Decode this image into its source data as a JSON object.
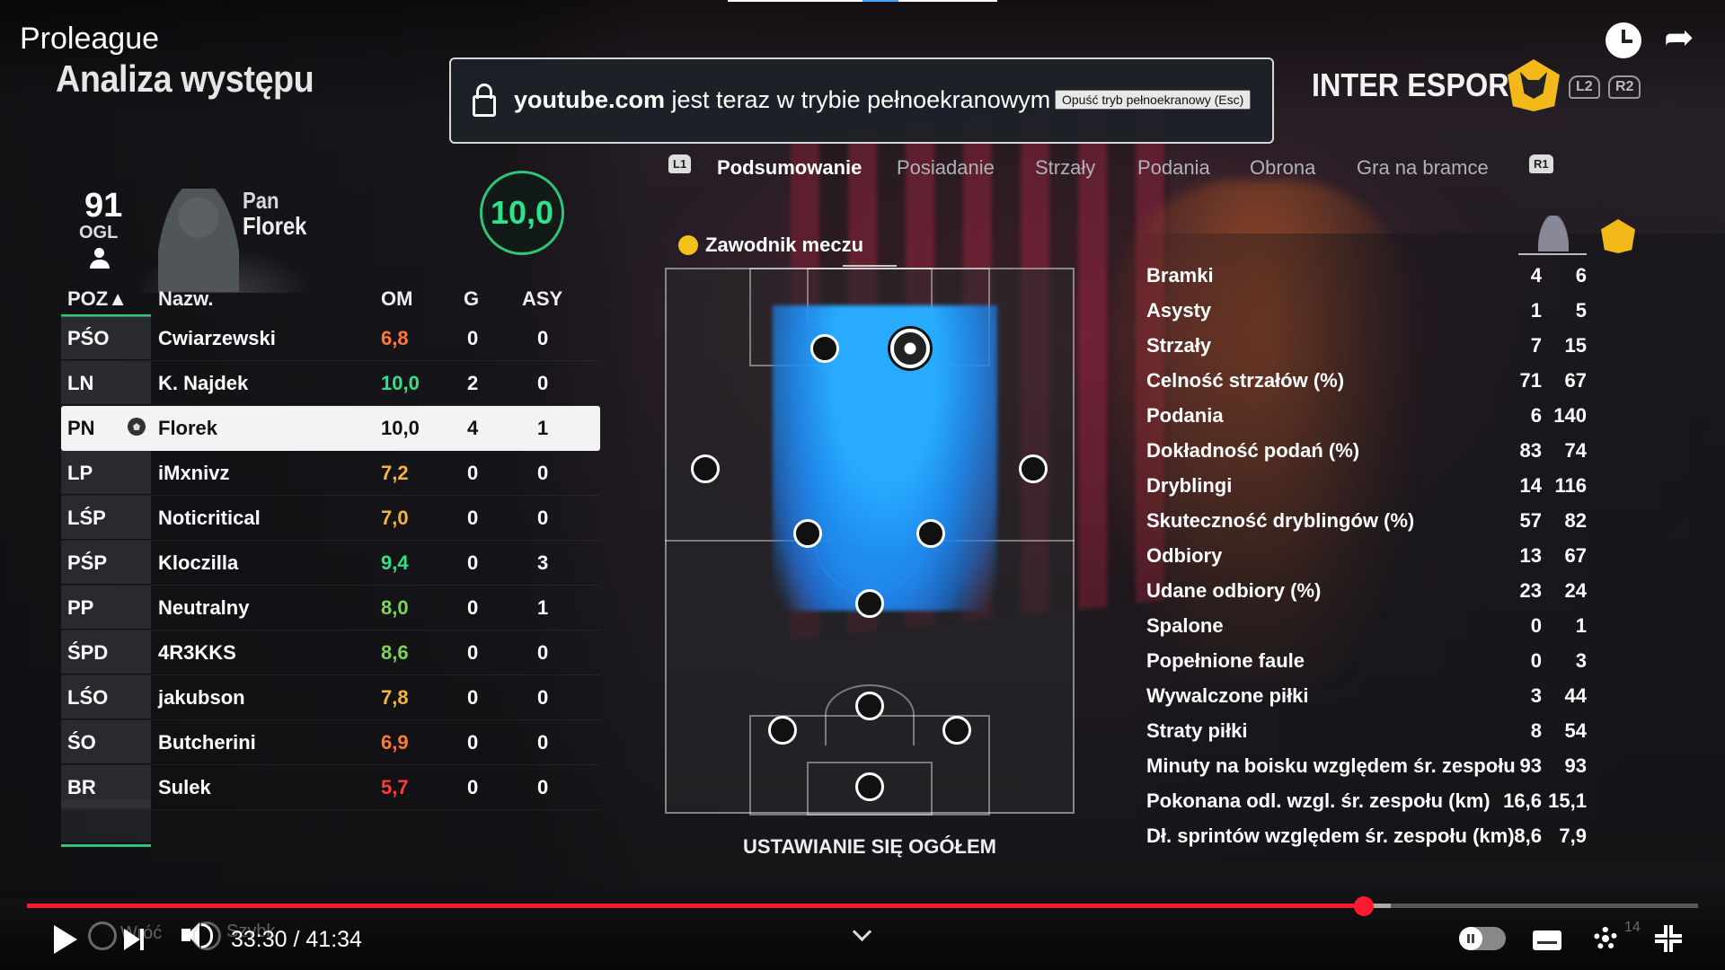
{
  "player": {
    "video_title": "Proleague",
    "time_current": "33:30",
    "time_total": "41:34",
    "time_display": "33:30 / 41:34",
    "progress_fraction": 0.8,
    "faded_labels": [
      "Wróć",
      "Szybk"
    ],
    "faded_badge": "14"
  },
  "fullscreen_banner": {
    "site": "youtube.com",
    "message": "jest teraz w trybie pełnoekranowym",
    "exit_button": "Opuść tryb pełnoekranowy (Esc)"
  },
  "game": {
    "screen_title": "Analiza występu",
    "brand": "INTER ESPORT",
    "l2": "L2",
    "r2": "R2",
    "l1": "L1",
    "r1": "R1",
    "tabs": [
      "Podsumowanie",
      "Posiadanie",
      "Strzały",
      "Podania",
      "Obrona",
      "Gra na bramce"
    ],
    "active_tab": "Podsumowanie",
    "player_card": {
      "ovr": "91",
      "ovr_label": "OGL",
      "first_name": "Pan",
      "last_name": "Florek",
      "rating": "10,0"
    },
    "table": {
      "headers": {
        "pos": "POZ▲",
        "name": "Nazw.",
        "om": "OM",
        "g": "G",
        "asy": "ASY"
      },
      "rows": [
        {
          "pos": "PŚO",
          "name": "Cwiarzewski",
          "om": "6,8",
          "g": "0",
          "asy": "0",
          "color": "#ff7a3a"
        },
        {
          "pos": "LN",
          "name": "K. Najdek",
          "om": "10,0",
          "g": "2",
          "asy": "0",
          "color": "#35e08a"
        },
        {
          "pos": "PN",
          "name": "Florek",
          "om": "10,0",
          "g": "4",
          "asy": "1",
          "color": "#111111",
          "selected": true
        },
        {
          "pos": "LP",
          "name": "iMxnivz",
          "om": "7,2",
          "g": "0",
          "asy": "0",
          "color": "#f2b540"
        },
        {
          "pos": "LŚP",
          "name": "Noticritical",
          "om": "7,0",
          "g": "0",
          "asy": "0",
          "color": "#f2b540"
        },
        {
          "pos": "PŚP",
          "name": "Kloczilla",
          "om": "9,4",
          "g": "0",
          "asy": "3",
          "color": "#35e08a"
        },
        {
          "pos": "PP",
          "name": "Neutralny",
          "om": "8,0",
          "g": "0",
          "asy": "1",
          "color": "#7fd35a"
        },
        {
          "pos": "ŚPD",
          "name": "4R3KKS",
          "om": "8,6",
          "g": "0",
          "asy": "0",
          "color": "#7fd35a"
        },
        {
          "pos": "LŚO",
          "name": "jakubson",
          "om": "7,8",
          "g": "0",
          "asy": "0",
          "color": "#f2b540"
        },
        {
          "pos": "ŚO",
          "name": "Butcherini",
          "om": "6,9",
          "g": "0",
          "asy": "0",
          "color": "#ff7a3a"
        },
        {
          "pos": "BR",
          "name": "Sulek",
          "om": "5,7",
          "g": "0",
          "asy": "0",
          "color": "#ff3b3b"
        }
      ]
    },
    "man_of_match": "Zawodnik meczu",
    "pitch_label": "USTAWIANIE SIĘ OGÓŁEM",
    "stats": [
      {
        "label": "Bramki",
        "player": "4",
        "team": "6"
      },
      {
        "label": "Asysty",
        "player": "1",
        "team": "5"
      },
      {
        "label": "Strzały",
        "player": "7",
        "team": "15"
      },
      {
        "label": "Celność strzałów (%)",
        "player": "71",
        "team": "67"
      },
      {
        "label": "Podania",
        "player": "6",
        "team": "140"
      },
      {
        "label": "Dokładność podań (%)",
        "player": "83",
        "team": "74"
      },
      {
        "label": "Dryblingi",
        "player": "14",
        "team": "116"
      },
      {
        "label": "Skuteczność dryblingów (%)",
        "player": "57",
        "team": "82"
      },
      {
        "label": "Odbiory",
        "player": "13",
        "team": "67"
      },
      {
        "label": "Udane odbiory (%)",
        "player": "23",
        "team": "24"
      },
      {
        "label": "Spalone",
        "player": "0",
        "team": "1"
      },
      {
        "label": "Popełnione faule",
        "player": "0",
        "team": "3"
      },
      {
        "label": "Wywalczone piłki",
        "player": "3",
        "team": "44"
      },
      {
        "label": "Straty piłki",
        "player": "8",
        "team": "54"
      },
      {
        "label": "Minuty na boisku względem śr. zespołu",
        "player": "93",
        "team": "93"
      },
      {
        "label": "Pokonana odl. wzgl. śr. zespołu (km)",
        "player": "16,6",
        "team": "15,1"
      },
      {
        "label": "Dł. sprintów względem śr. zespołu (km)",
        "player": "8,6",
        "team": "7,9"
      }
    ]
  }
}
